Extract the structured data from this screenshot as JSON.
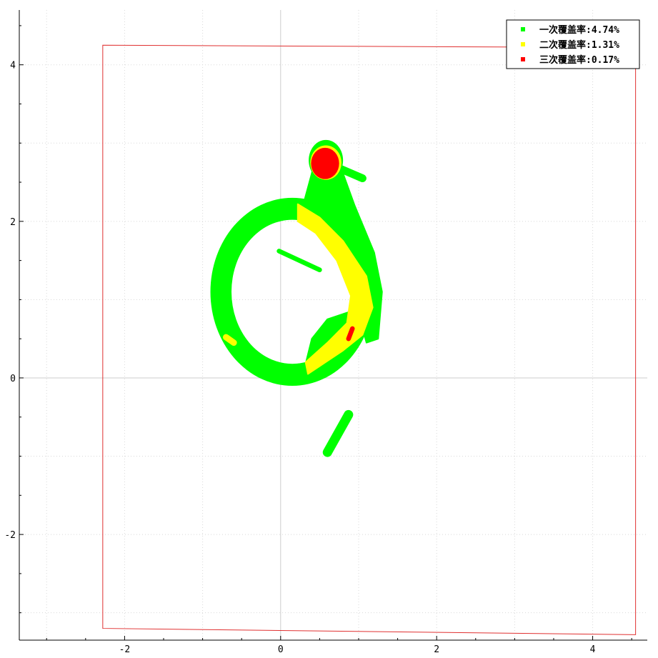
{
  "chart_data": {
    "type": "scatter",
    "title": "",
    "xlabel": "",
    "ylabel": "",
    "xlim": [
      -3.35,
      4.7
    ],
    "ylim": [
      -3.35,
      4.7
    ],
    "x_ticks": [
      -2,
      0,
      2,
      4
    ],
    "x_tick_labels": [
      "-2",
      "0",
      "2",
      "4"
    ],
    "y_ticks": [
      -2,
      0,
      2,
      4
    ],
    "y_tick_labels": [
      "-2",
      "0",
      "2",
      "4"
    ],
    "grid": true,
    "legend_position": "top-right",
    "series": [
      {
        "name": "一次覆盖率:4.74%",
        "color": "#00ff00",
        "regions": [
          {
            "kind": "ring",
            "cx": 0.15,
            "cy": 1.1,
            "rx_outer": 1.05,
            "ry_outer": 1.2,
            "rx_inner": 0.78,
            "ry_inner": 0.92
          },
          {
            "kind": "polygon",
            "points": [
              [
                0.3,
                2.25
              ],
              [
                0.45,
                2.8
              ],
              [
                0.75,
                2.75
              ],
              [
                0.95,
                2.2
              ],
              [
                1.2,
                1.6
              ],
              [
                1.3,
                1.1
              ],
              [
                1.25,
                0.5
              ],
              [
                1.1,
                0.45
              ],
              [
                0.9,
                1.2
              ],
              [
                0.6,
                1.9
              ],
              [
                0.3,
                2.1
              ]
            ]
          },
          {
            "kind": "polygon",
            "points": [
              [
                0.3,
                0.1
              ],
              [
                0.4,
                0.5
              ],
              [
                0.6,
                0.75
              ],
              [
                0.9,
                0.85
              ],
              [
                1.0,
                0.6
              ],
              [
                0.8,
                0.25
              ],
              [
                0.5,
                0.05
              ]
            ]
          },
          {
            "kind": "ellipse",
            "cx": 0.58,
            "cy": 2.78,
            "rx": 0.22,
            "ry": 0.26
          },
          {
            "kind": "segment",
            "x1": 0.7,
            "y1": 2.7,
            "x2": 1.05,
            "y2": 2.55,
            "width": 0.1
          },
          {
            "kind": "segment",
            "x1": -0.02,
            "y1": 1.62,
            "x2": 0.5,
            "y2": 1.38,
            "width": 0.06
          },
          {
            "kind": "segment",
            "x1": 0.6,
            "y1": -0.95,
            "x2": 0.87,
            "y2": -0.47,
            "width": 0.12
          }
        ]
      },
      {
        "name": "二次覆盖率:1.31%",
        "color": "#ffff00",
        "regions": [
          {
            "kind": "polygon",
            "points": [
              [
                0.22,
                2.22
              ],
              [
                0.5,
                2.05
              ],
              [
                0.8,
                1.75
              ],
              [
                1.1,
                1.3
              ],
              [
                1.18,
                0.9
              ],
              [
                1.05,
                0.55
              ],
              [
                0.8,
                0.35
              ],
              [
                0.5,
                0.15
              ],
              [
                0.35,
                0.05
              ],
              [
                0.32,
                0.2
              ],
              [
                0.6,
                0.45
              ],
              [
                0.85,
                0.7
              ],
              [
                0.9,
                1.05
              ],
              [
                0.72,
                1.5
              ],
              [
                0.45,
                1.85
              ],
              [
                0.22,
                2.0
              ]
            ]
          },
          {
            "kind": "ellipse",
            "cx": 0.58,
            "cy": 2.75,
            "rx": 0.2,
            "ry": 0.22
          },
          {
            "kind": "segment",
            "x1": -0.7,
            "y1": 0.52,
            "x2": -0.6,
            "y2": 0.45,
            "width": 0.08
          }
        ]
      },
      {
        "name": "三次覆盖率:0.17%",
        "color": "#ff0000",
        "regions": [
          {
            "kind": "ellipse",
            "cx": 0.57,
            "cy": 2.74,
            "rx": 0.18,
            "ry": 0.2
          },
          {
            "kind": "segment",
            "x1": 0.87,
            "y1": 0.5,
            "x2": 0.92,
            "y2": 0.63,
            "width": 0.06
          }
        ]
      }
    ],
    "boundary": {
      "color": "#e03030",
      "points": [
        [
          -2.28,
          4.25
        ],
        [
          4.55,
          4.22
        ],
        [
          4.55,
          -3.28
        ],
        [
          -2.28,
          -3.2
        ]
      ]
    }
  }
}
